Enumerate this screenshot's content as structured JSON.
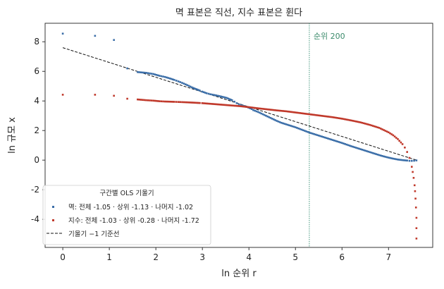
{
  "chart_data": {
    "type": "scatter",
    "title": "멱 표본은 직선, 지수 표본은 휜다",
    "xlabel": "ln 순위 r",
    "ylabel": "ln 규모 x",
    "xlim": [
      -0.38,
      7.95
    ],
    "ylim": [
      -5.9,
      9.25
    ],
    "x_ticks": [
      "0",
      "1",
      "2",
      "3",
      "4",
      "5",
      "6",
      "7"
    ],
    "y_ticks": [
      "8",
      "6",
      "4",
      "2",
      "0",
      "-2",
      "-4"
    ],
    "grid": false,
    "legend_placement": "lower-left",
    "legend_title": "구간별 OLS 기울기",
    "series": [
      {
        "name": "멱: 전체 -1.05 · 상위 -1.13 · 나머지 -1.02",
        "color": "#3b6ea8",
        "x": [
          0,
          0.693,
          1.099,
          1.386,
          1.609,
          1.792,
          1.946,
          2.079,
          2.197,
          2.303,
          2.398,
          2.485,
          2.565,
          2.639,
          2.708,
          2.773,
          2.833,
          2.89,
          2.944,
          2.996,
          3.091,
          3.178,
          3.258,
          3.332,
          3.401,
          3.466,
          3.526,
          3.584,
          3.638,
          3.689,
          3.738,
          3.784,
          3.829,
          3.871,
          3.912,
          3.951,
          3.989,
          4.025,
          4.06,
          4.094,
          4.2,
          4.3,
          4.4,
          4.5,
          4.6,
          4.7,
          4.8,
          4.9,
          5.0,
          5.1,
          5.2,
          5.3,
          5.4,
          5.5,
          5.6,
          5.7,
          5.8,
          5.9,
          6.0,
          6.1,
          6.2,
          6.3,
          6.4,
          6.5,
          6.6,
          6.7,
          6.8,
          6.9,
          7.0,
          7.1,
          7.2,
          7.3,
          7.4,
          7.45,
          7.5,
          7.55,
          7.6
        ],
        "y": [
          8.55,
          8.4,
          8.12,
          6.2,
          5.95,
          5.9,
          5.82,
          5.7,
          5.62,
          5.52,
          5.42,
          5.32,
          5.22,
          5.12,
          5.02,
          4.92,
          4.84,
          4.77,
          4.7,
          4.63,
          4.52,
          4.45,
          4.4,
          4.35,
          4.3,
          4.25,
          4.2,
          4.12,
          4.05,
          3.95,
          3.85,
          3.77,
          3.72,
          3.68,
          3.64,
          3.6,
          3.55,
          3.5,
          3.45,
          3.38,
          3.25,
          3.1,
          2.95,
          2.8,
          2.65,
          2.52,
          2.42,
          2.32,
          2.22,
          2.1,
          1.98,
          1.86,
          1.76,
          1.66,
          1.56,
          1.46,
          1.36,
          1.26,
          1.16,
          1.05,
          0.94,
          0.84,
          0.74,
          0.64,
          0.54,
          0.44,
          0.34,
          0.25,
          0.17,
          0.1,
          0.04,
          0.0,
          -0.03,
          -0.05,
          -0.05,
          -0.04,
          -0.02
        ]
      },
      {
        "name": "지수: 전체 -1.03 · 상위 -0.28 · 나머지 -1.72",
        "color": "#c0392b",
        "x": [
          0,
          0.693,
          1.099,
          1.386,
          1.609,
          1.792,
          1.946,
          2.079,
          2.197,
          2.303,
          2.398,
          2.485,
          2.565,
          2.639,
          2.708,
          2.773,
          2.833,
          2.89,
          2.944,
          2.996,
          3.2,
          3.4,
          3.6,
          3.8,
          4.0,
          4.2,
          4.4,
          4.6,
          4.8,
          5.0,
          5.2,
          5.4,
          5.6,
          5.8,
          6.0,
          6.2,
          6.4,
          6.6,
          6.8,
          7.0,
          7.1,
          7.2,
          7.3,
          7.35,
          7.4,
          7.45,
          7.5,
          7.52,
          7.54,
          7.56,
          7.57,
          7.58,
          7.59,
          7.6,
          7.6,
          7.6
        ],
        "y": [
          4.42,
          4.42,
          4.35,
          4.15,
          4.1,
          4.05,
          4.02,
          3.98,
          3.96,
          3.95,
          3.94,
          3.93,
          3.92,
          3.91,
          3.9,
          3.89,
          3.88,
          3.87,
          3.86,
          3.85,
          3.8,
          3.75,
          3.7,
          3.65,
          3.58,
          3.5,
          3.43,
          3.36,
          3.3,
          3.22,
          3.14,
          3.06,
          2.98,
          2.9,
          2.8,
          2.68,
          2.55,
          2.38,
          2.18,
          1.88,
          1.68,
          1.42,
          1.08,
          0.85,
          0.55,
          0.15,
          -0.45,
          -0.8,
          -1.2,
          -1.7,
          -2.1,
          -2.6,
          -3.2,
          -3.9,
          -4.6,
          -5.3
        ]
      }
    ],
    "reference_line": {
      "name": "기울기 −1 기준선",
      "color": "#111111",
      "x": [
        0,
        7.6
      ],
      "y": [
        7.6,
        -0.0
      ]
    },
    "vertical_marker": {
      "label": "순위 200",
      "x": 5.298,
      "color": "#2e8b6e"
    }
  }
}
